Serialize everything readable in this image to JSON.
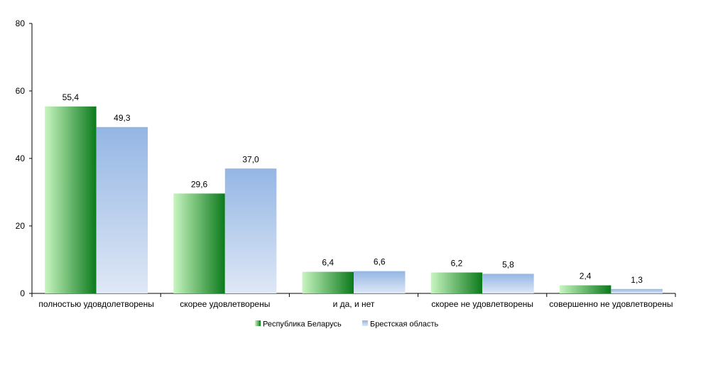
{
  "chart_data": {
    "type": "bar",
    "title": "",
    "xlabel": "",
    "ylabel": "",
    "ylim": [
      0,
      80
    ],
    "yticks": [
      0,
      20,
      40,
      60,
      80
    ],
    "grid": false,
    "legend_position": "bottom",
    "categories": [
      "полностью удовдолетворены",
      "скорее удовлетворены",
      "и да, и нет",
      "скорее не удовлетворены",
      "совершенно не удовлетворены"
    ],
    "series": [
      {
        "name": "Республика Беларусь",
        "values": [
          55.4,
          29.6,
          6.4,
          6.2,
          2.4
        ],
        "labels": [
          "55,4",
          "29,6",
          "6,4",
          "6,2",
          "2,4"
        ],
        "color_light": "#c8f5c0",
        "color_dark": "#0b7a1b"
      },
      {
        "name": "Брестская область",
        "values": [
          49.3,
          37.0,
          6.6,
          5.8,
          1.3
        ],
        "labels": [
          "49,3",
          "37,0",
          "6,6",
          "5,8",
          "1,3"
        ],
        "color_light": "#dfe8f6",
        "color_dark": "#94b6e4"
      }
    ]
  }
}
